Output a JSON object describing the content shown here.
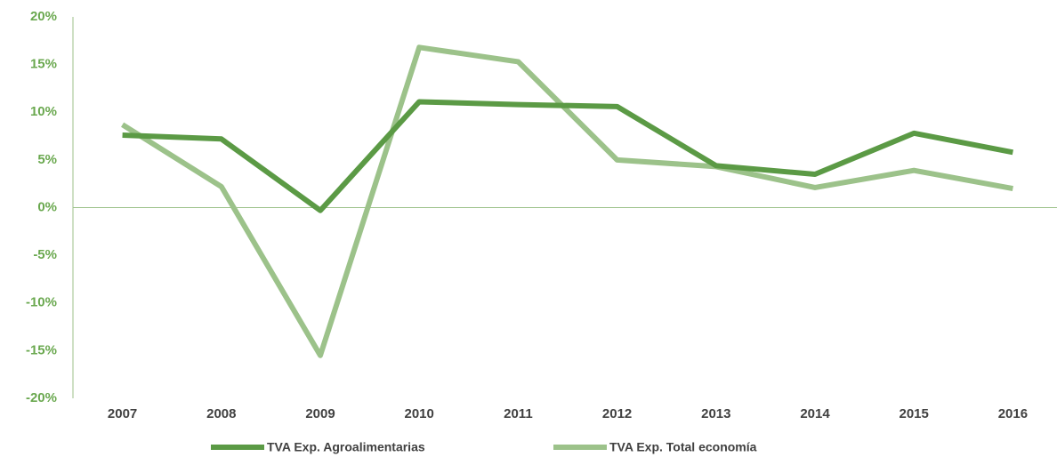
{
  "chart_data": {
    "type": "line",
    "categories": [
      "2007",
      "2008",
      "2009",
      "2010",
      "2011",
      "2012",
      "2013",
      "2014",
      "2015",
      "2016"
    ],
    "series": [
      {
        "name": "TVA Exp. Agroalimentarias",
        "color": "#5b9a45",
        "values": [
          7.6,
          7.2,
          -0.3,
          11.1,
          10.8,
          10.6,
          4.4,
          3.5,
          7.8,
          5.8
        ]
      },
      {
        "name": "TVA Exp. Total economía",
        "color": "#9cc28a",
        "values": [
          8.7,
          2.2,
          -15.5,
          16.8,
          15.3,
          5.0,
          4.3,
          2.1,
          3.9,
          2.0
        ]
      }
    ],
    "ylim": [
      -20,
      20
    ],
    "yticks": [
      {
        "value": -20,
        "label": "-20%"
      },
      {
        "value": -15,
        "label": "-15%"
      },
      {
        "value": -10,
        "label": "-10%"
      },
      {
        "value": -5,
        "label": "-5%"
      },
      {
        "value": 0,
        "label": "0%"
      },
      {
        "value": 5,
        "label": "5%"
      },
      {
        "value": 10,
        "label": "10%"
      },
      {
        "value": 15,
        "label": "15%"
      },
      {
        "value": 20,
        "label": "20%"
      }
    ],
    "grid": false,
    "legend": "bottom"
  }
}
